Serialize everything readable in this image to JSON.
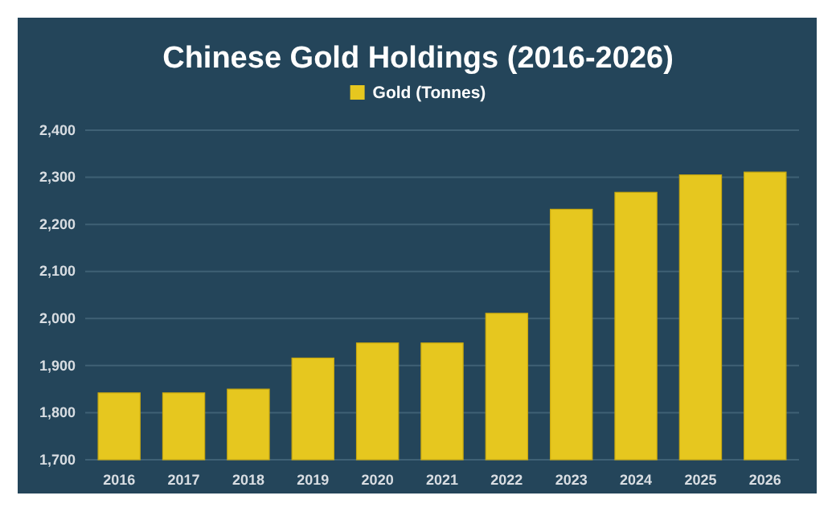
{
  "chart_data": {
    "type": "bar",
    "title": "Chinese Gold Holdings (2016-2026)",
    "categories": [
      "2016",
      "2017",
      "2018",
      "2019",
      "2020",
      "2021",
      "2022",
      "2023",
      "2024",
      "2025",
      "2026"
    ],
    "series": [
      {
        "name": "Gold (Tonnes)",
        "color": "#e6c71f",
        "values": [
          1842,
          1842,
          1850,
          1916,
          1948,
          1948,
          2011,
          2232,
          2268,
          2305,
          2311
        ]
      }
    ],
    "ylim": [
      1700,
      2400
    ],
    "yticks": [
      {
        "value": 1700,
        "label": "1,700"
      },
      {
        "value": 1800,
        "label": "1,800"
      },
      {
        "value": 1900,
        "label": "1,900"
      },
      {
        "value": 2000,
        "label": "2,000"
      },
      {
        "value": 2100,
        "label": "2,100"
      },
      {
        "value": 2200,
        "label": "2,200"
      },
      {
        "value": 2300,
        "label": "2,300"
      },
      {
        "value": 2400,
        "label": "2,400"
      }
    ],
    "grid": "y",
    "legend": "top"
  }
}
